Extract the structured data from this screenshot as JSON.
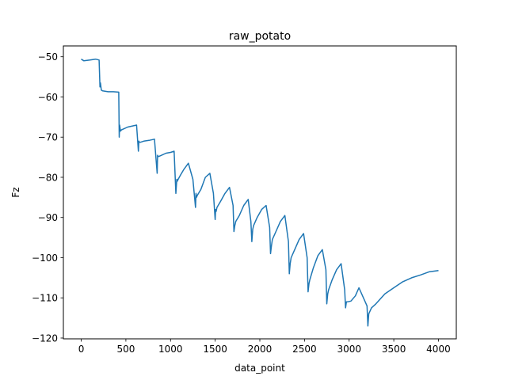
{
  "chart_data": {
    "type": "line",
    "title": "raw_potato",
    "xlabel": "data_point",
    "ylabel": "Fz",
    "xlim": [
      -200,
      4200
    ],
    "ylim": [
      -120.2,
      -47.3
    ],
    "xticks": [
      0,
      500,
      1000,
      1500,
      2000,
      2500,
      3000,
      3500,
      4000
    ],
    "yticks": [
      -120,
      -110,
      -100,
      -90,
      -80,
      -70,
      -60,
      -50
    ],
    "grid": false,
    "legend": "none",
    "series": [
      {
        "color": "#1f77b4",
        "x": [
          0,
          30,
          100,
          160,
          200,
          210,
          215,
          225,
          240,
          300,
          360,
          420,
          425,
          430,
          440,
          450,
          470,
          520,
          580,
          620,
          640,
          645,
          650,
          660,
          700,
          760,
          820,
          850,
          855,
          860,
          870,
          900,
          950,
          1000,
          1040,
          1060,
          1070,
          1075,
          1085,
          1110,
          1150,
          1200,
          1250,
          1280,
          1285,
          1290,
          1300,
          1340,
          1390,
          1440,
          1480,
          1500,
          1505,
          1510,
          1520,
          1560,
          1610,
          1660,
          1700,
          1710,
          1720,
          1730,
          1770,
          1820,
          1870,
          1900,
          1910,
          1920,
          1930,
          1970,
          2020,
          2070,
          2110,
          2120,
          2130,
          2140,
          2180,
          2230,
          2280,
          2320,
          2330,
          2340,
          2350,
          2390,
          2440,
          2490,
          2530,
          2540,
          2550,
          2560,
          2600,
          2650,
          2700,
          2740,
          2750,
          2760,
          2770,
          2810,
          2860,
          2910,
          2950,
          2960,
          2970,
          2980,
          3020,
          3070,
          3110,
          3200,
          3210,
          3220,
          3250,
          3300,
          3400,
          3500,
          3600,
          3700,
          3800,
          3900,
          4000
        ],
        "y": [
          -50.6,
          -51.0,
          -50.8,
          -50.6,
          -50.8,
          -57.5,
          -56.5,
          -58.3,
          -58.5,
          -58.7,
          -58.7,
          -58.8,
          -70.0,
          -67.0,
          -68.5,
          -68.2,
          -68.0,
          -67.5,
          -67.2,
          -67.0,
          -73.5,
          -71.0,
          -71.2,
          -71.3,
          -71.0,
          -70.8,
          -70.5,
          -79.0,
          -74.5,
          -74.8,
          -74.8,
          -74.5,
          -74.0,
          -73.8,
          -73.5,
          -84.0,
          -80.5,
          -81.0,
          -80.5,
          -79.5,
          -78.0,
          -76.5,
          -80.5,
          -87.5,
          -84.0,
          -85.0,
          -84.5,
          -83.0,
          -80.0,
          -79.0,
          -84.0,
          -90.5,
          -88.0,
          -88.5,
          -87.5,
          -86.0,
          -84.0,
          -82.5,
          -87.0,
          -93.5,
          -92.0,
          -91.0,
          -89.5,
          -87.0,
          -85.5,
          -91.0,
          -96.0,
          -93.0,
          -92.0,
          -90.0,
          -88.0,
          -87.0,
          -92.5,
          -99.0,
          -97.0,
          -95.5,
          -93.5,
          -91.0,
          -89.5,
          -96.0,
          -104.0,
          -101.5,
          -100.0,
          -98.0,
          -95.5,
          -94.0,
          -100.0,
          -108.5,
          -106.5,
          -105.5,
          -102.5,
          -99.5,
          -98.0,
          -103.0,
          -111.5,
          -109.0,
          -108.0,
          -105.5,
          -103.0,
          -101.5,
          -108.0,
          -112.5,
          -111.0,
          -111.0,
          -110.8,
          -109.5,
          -107.5,
          -112.0,
          -117.0,
          -114.0,
          -112.5,
          -111.5,
          -109.0,
          -107.5,
          -106.0,
          -105.0,
          -104.3,
          -103.5,
          -103.2
        ]
      }
    ]
  }
}
